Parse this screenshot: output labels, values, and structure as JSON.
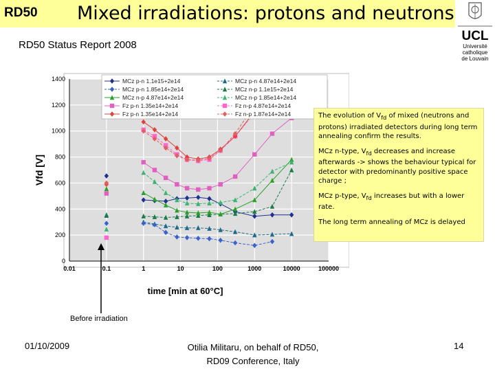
{
  "header": {
    "brand": "RD50",
    "title": "Mixed irradiations: protons and neutrons",
    "subtitle": "RD50 Status Report 2008"
  },
  "logo": {
    "text": "UCL",
    "line1": "Université",
    "line2": "catholique",
    "line3": "de Louvain"
  },
  "annotation": {
    "before_irradiation": "Before irradiation"
  },
  "infobox": {
    "p1_pre": "The evolution of V",
    "p1_sub": "fd",
    "p1_post": " of mixed (neutrons and protons) irradiated detectors during long term annealing confirm the results.",
    "p2_pre": "MCz n-type, V",
    "p2_sub": "fd",
    "p2_post": " decreases and increase afterwards -> shows the behaviour typical for detector with predominantly positive space charge ;",
    "p3_pre": "MCz p-type, V",
    "p3_sub": "fd",
    "p3_post": " increases but with a lower rate.",
    "p4": "The long term annealing of MCz is delayed"
  },
  "footer": {
    "date": "01/10/2009",
    "author_line1": "Otilia Militaru, on behalf of RD50,",
    "author_line2": "RD09 Conference, Italy",
    "page": "14"
  },
  "colors": {
    "header_bg": "#ffff99",
    "infobox_bg": "#ffff99",
    "plot_bg": "#dedede"
  },
  "chart_data": {
    "type": "scatter",
    "xscale": "log",
    "xlim": [
      0.01,
      100000
    ],
    "ylim": [
      0,
      1400
    ],
    "xlabel": "time [min at 60°C]",
    "ylabel": "Vfd [V]",
    "xticks": [
      "0.01",
      "0.1",
      "1",
      "10",
      "100",
      "1000",
      "10000",
      "100000"
    ],
    "yticks": [
      "0",
      "200",
      "400",
      "600",
      "800",
      "1000",
      "1200",
      "1400"
    ],
    "grid": true,
    "legend_position": "top",
    "series": [
      {
        "name": "MCz p-n 1.1e15+2e14",
        "color": "#1f2f8f",
        "marker": "diamond",
        "dash": "solid",
        "x": [
          0.1,
          1,
          2,
          4,
          8,
          15,
          30,
          60,
          120,
          300,
          1000,
          3000,
          10000
        ],
        "y": [
          655,
          470,
          465,
          460,
          480,
          485,
          490,
          480,
          440,
          380,
          345,
          355,
          355
        ]
      },
      {
        "name": "MCz p-n 4.87e14+2e14",
        "color": "#1f6a8a",
        "marker": "triangle",
        "dash": "dash",
        "x": [
          0.1,
          1,
          2,
          4,
          8,
          15,
          30,
          60,
          120,
          300,
          1000,
          3000,
          10000
        ],
        "y": [
          350,
          300,
          285,
          270,
          260,
          255,
          255,
          250,
          240,
          225,
          200,
          205,
          210
        ]
      },
      {
        "name": "MCz p-n 1.85e14+2e14",
        "color": "#3a63c9",
        "marker": "diamond",
        "dash": "dash",
        "x": [
          0.1,
          1,
          2,
          4,
          8,
          15,
          30,
          60,
          120,
          300,
          1000,
          3000
        ],
        "y": [
          290,
          290,
          280,
          220,
          185,
          180,
          175,
          172,
          160,
          140,
          120,
          150
        ]
      },
      {
        "name": "MCz n-p 1.1e15+2e14",
        "color": "#1a7a4a",
        "marker": "triangle",
        "dash": "dash",
        "x": [
          0.1,
          1,
          2,
          4,
          8,
          15,
          30,
          60,
          120,
          300,
          1000,
          3000,
          10000
        ],
        "y": [
          355,
          345,
          340,
          335,
          340,
          345,
          350,
          355,
          360,
          365,
          380,
          420,
          700
        ]
      },
      {
        "name": "MCz n-p 4.87e14+2e14",
        "color": "#2aa02a",
        "marker": "triangle",
        "dash": "solid",
        "x": [
          0.1,
          1,
          2,
          4,
          8,
          15,
          30,
          60,
          120,
          300,
          1000,
          3000,
          10000
        ],
        "y": [
          555,
          525,
          475,
          430,
          390,
          375,
          370,
          375,
          360,
          400,
          470,
          620,
          780
        ]
      },
      {
        "name": "MCz n-p 1.85e14+2e14",
        "color": "#3cb371",
        "marker": "triangle",
        "dash": "dash",
        "x": [
          0.1,
          1,
          2,
          4,
          8,
          15,
          30,
          60,
          120,
          300,
          1000,
          3000,
          10000
        ],
        "y": [
          245,
          680,
          610,
          525,
          470,
          445,
          440,
          445,
          450,
          470,
          560,
          690,
          760
        ]
      },
      {
        "name": "Fz p-n 1.35e14+2e14",
        "color": "#e060c0",
        "marker": "square",
        "dash": "solid",
        "x": [
          0.1,
          1,
          2,
          4,
          8,
          15,
          30,
          60,
          120,
          300,
          1000,
          3000,
          10000
        ],
        "y": [
          520,
          760,
          700,
          640,
          590,
          560,
          550,
          560,
          590,
          650,
          820,
          980,
          1100
        ]
      },
      {
        "name": "Fz n-p 4.87e14+2e14",
        "color": "#ff66cc",
        "marker": "square",
        "dash": "dash",
        "x": [
          0.1,
          1,
          2,
          4,
          8,
          15,
          30,
          60,
          120,
          300,
          1000,
          3000,
          10000
        ],
        "y": [
          180,
          1010,
          960,
          890,
          820,
          780,
          770,
          780,
          850,
          960,
          1140,
          1260,
          1380
        ]
      },
      {
        "name": "Fz p-n 1.35e14+2e14",
        "color": "#e04040",
        "marker": "diamond",
        "dash": "solid",
        "x": [
          0.1,
          1,
          2,
          4,
          8,
          15,
          30,
          60,
          120,
          300,
          1000,
          3000
        ],
        "y": [
          590,
          1070,
          1010,
          940,
          870,
          800,
          785,
          800,
          860,
          960,
          1150,
          1350
        ]
      },
      {
        "name": "Fz n-p 1.87e14+2e14",
        "color": "#e06060",
        "marker": "diamond",
        "dash": "dash",
        "x": [
          0.1,
          1,
          2,
          4,
          8,
          15,
          30,
          60,
          120,
          300,
          1000
        ],
        "y": [
          600,
          1000,
          940,
          870,
          810,
          780,
          775,
          790,
          850,
          980,
          1200
        ]
      }
    ]
  }
}
